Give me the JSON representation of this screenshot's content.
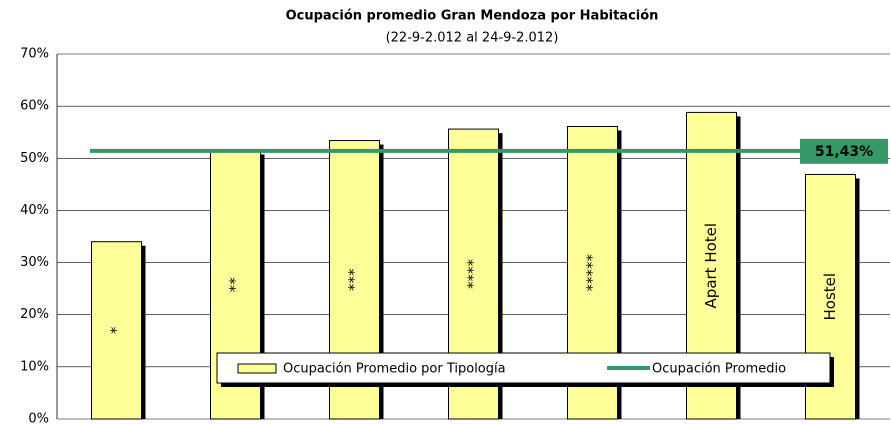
{
  "chart_data": {
    "type": "bar",
    "title": "Ocupación promedio Gran Mendoza por Habitación",
    "subtitle": "(22-9-2.012 al 24-9-2.012)",
    "categories": [
      "*",
      "**",
      "***",
      "****",
      "*****",
      "Apart Hotel",
      "Hostel"
    ],
    "series": [
      {
        "name": "Ocupación Promedio por Tipología",
        "color": "#ffff99",
        "values": [
          34,
          51.5,
          53.4,
          55.6,
          56.1,
          58.8,
          46.9
        ]
      }
    ],
    "average": {
      "name": "Ocupación Promedio",
      "color": "#339966",
      "value": 51.43,
      "value_label": "51,43%"
    },
    "ylim": [
      0,
      70
    ],
    "yticks": [
      {
        "value": 0,
        "label": "0%"
      },
      {
        "value": 10,
        "label": "10%"
      },
      {
        "value": 20,
        "label": "20%"
      },
      {
        "value": 30,
        "label": "30%"
      },
      {
        "value": 40,
        "label": "40%"
      },
      {
        "value": 50,
        "label": "50%"
      },
      {
        "value": 60,
        "label": "60%"
      },
      {
        "value": 70,
        "label": "70%"
      }
    ],
    "grid": true
  }
}
